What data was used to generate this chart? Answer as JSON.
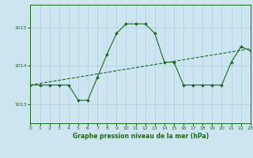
{
  "title": "Graphe pression niveau de la mer (hPa)",
  "bg_color": "#cce5f0",
  "grid_color": "#aacfe0",
  "line_color": "#1a6b1a",
  "x_min": 0,
  "x_max": 23,
  "y_min": 1012.5,
  "y_max": 1015.6,
  "y_ticks": [
    1013,
    1014,
    1015
  ],
  "x_ticks": [
    0,
    1,
    2,
    3,
    4,
    5,
    6,
    7,
    8,
    9,
    10,
    11,
    12,
    13,
    14,
    15,
    16,
    17,
    18,
    19,
    20,
    21,
    22,
    23
  ],
  "main_line_x": [
    0,
    1,
    2,
    3,
    4,
    5,
    6,
    7,
    8,
    9,
    10,
    11,
    12,
    13,
    14,
    15,
    16,
    17,
    18,
    19,
    20,
    21,
    22,
    23
  ],
  "main_line_y": [
    1013.5,
    1013.5,
    1013.5,
    1013.5,
    1013.5,
    1013.1,
    1013.1,
    1013.7,
    1014.3,
    1014.85,
    1015.1,
    1015.1,
    1015.1,
    1014.85,
    1014.1,
    1014.1,
    1013.5,
    1013.5,
    1013.5,
    1013.5,
    1013.5,
    1014.1,
    1014.5,
    1014.4
  ],
  "trend_line_x": [
    0,
    23
  ],
  "trend_line_y": [
    1013.5,
    1014.45
  ],
  "title_fontsize": 5.5,
  "tick_fontsize": 4.5,
  "marker_size": 2.0,
  "line_width": 0.8
}
